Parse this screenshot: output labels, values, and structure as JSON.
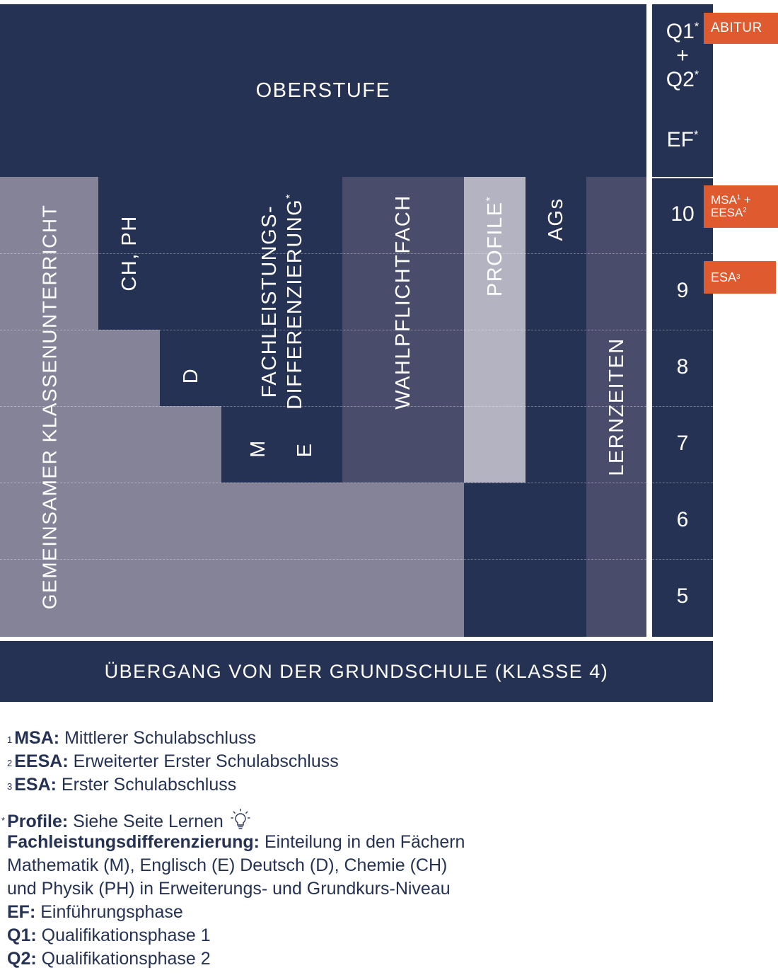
{
  "oberstufe": "OBERSTUFE",
  "columns": {
    "gemeinsamer": "GEMEINSAMER KLASSENUNTERRICHT",
    "ch_ph": "CH, PH",
    "d": "D",
    "m": "M",
    "e": "E",
    "fachleistung_line1": "FACHLEISTUNGS-",
    "fachleistung_line2": "DIFFERENZIERUNG",
    "fachleistung_star": "*",
    "wahlpflicht": "WAHLPFLICHTFACH",
    "profile": "PROFILE",
    "profile_star": "*",
    "ags": "AGs",
    "lernzeiten": "LERNZEITEN"
  },
  "right_column": {
    "q1": "Q1",
    "plus": "+",
    "q2": "Q2",
    "ef": "EF",
    "star": "*",
    "grades": [
      "10",
      "9",
      "8",
      "7",
      "6",
      "5"
    ]
  },
  "badges": {
    "abitur": "ABITUR",
    "msa": "MSA",
    "msa_sup": "1",
    "msa_plus": "+",
    "eesa": "EESA",
    "eesa_sup": "2",
    "esa": "ESA",
    "esa_sup": "3"
  },
  "bottom_bar": "ÜBERGANG VON DER GRUNDSCHULE (KLASSE 4)",
  "footnotes": {
    "msa_num": "1",
    "msa_abbr": "MSA:",
    "msa_text": "Mittlerer Schulabschluss",
    "eesa_num": "2",
    "eesa_abbr": "EESA:",
    "eesa_text": "Erweiterter Erster Schulabschluss",
    "esa_num": "3",
    "esa_abbr": "ESA:",
    "esa_text": "Erster Schulabschluss",
    "star": "*",
    "profile_label": "Profile:",
    "profile_text": "Siehe Seite Lernen",
    "fach_label": "Fachleistungsdifferenzierung:",
    "fach_text": "Einteilung in den Fächern",
    "fach_line2": "Mathematik (M), Englisch (E) Deutsch (D), Chemie (CH)",
    "fach_line3": "und Physik (PH) in Erweiterungs- und Grundkurs-Niveau",
    "ef_label": "EF:",
    "ef_text": "Einführungsphase",
    "q1_label": "Q1:",
    "q1_text": "Qualifikationsphase 1",
    "q2_label": "Q2:",
    "q2_text": "Qualifikationsphase 2"
  },
  "colors": {
    "navy": "#263253",
    "gray": "#858398",
    "slate": "#4a4c6b",
    "light": "#b3b3c1",
    "orange": "#e05a30"
  },
  "icons": {
    "lightbulb": "lightbulb-icon"
  }
}
